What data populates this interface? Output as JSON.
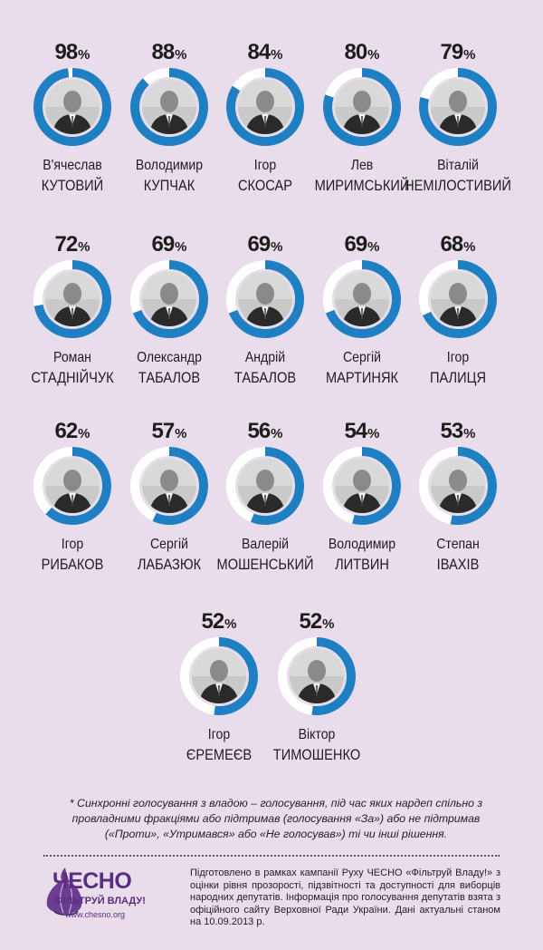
{
  "deputies": [
    {
      "pct": "98",
      "first": "В'ячеслав",
      "last": "КУТОВИЙ",
      "value": 0.98
    },
    {
      "pct": "88",
      "first": "Володимир",
      "last": "КУПЧАК",
      "value": 0.88
    },
    {
      "pct": "84",
      "first": "Ігор",
      "last": "СКОСАР",
      "value": 0.84
    },
    {
      "pct": "80",
      "first": "Лев",
      "last": "МИРИМСЬКИЙ",
      "value": 0.8
    },
    {
      "pct": "79",
      "first": "Віталій",
      "last": "НЕМІЛОСТИВИЙ",
      "value": 0.79
    },
    {
      "pct": "72",
      "first": "Роман",
      "last": "СТАДНІЙЧУК",
      "value": 0.72
    },
    {
      "pct": "69",
      "first": "Олександр",
      "last": "ТАБАЛОВ",
      "value": 0.69
    },
    {
      "pct": "69",
      "first": "Андрій",
      "last": "ТАБАЛОВ",
      "value": 0.69
    },
    {
      "pct": "69",
      "first": "Сергій",
      "last": "МАРТИНЯК",
      "value": 0.69
    },
    {
      "pct": "68",
      "first": "Ігор",
      "last": "ПАЛИЦЯ",
      "value": 0.68
    },
    {
      "pct": "62",
      "first": "Ігор",
      "last": "РИБАКОВ",
      "value": 0.62
    },
    {
      "pct": "57",
      "first": "Сергій",
      "last": "ЛАБАЗЮК",
      "value": 0.57
    },
    {
      "pct": "56",
      "first": "Валерій",
      "last": "МОШЕНСЬКИЙ",
      "value": 0.56
    },
    {
      "pct": "54",
      "first": "Володимир",
      "last": "ЛИТВИН",
      "value": 0.54
    },
    {
      "pct": "53",
      "first": "Степан",
      "last": "ІВАХІВ",
      "value": 0.53
    },
    {
      "pct": "52",
      "first": "Ігор",
      "last": "ЄРЕМЕЄВ",
      "value": 0.52
    },
    {
      "pct": "52",
      "first": "Віктор",
      "last": "ТИМОШЕНКО",
      "value": 0.52
    }
  ],
  "percent_sign": "%",
  "footnote": "* Синхронні голосування з владою – голосування, під час яких нардеп спільно з провладними фракціями або підтримав (голосування «За») або не підтримав («Проти», «Утримався» або «Не голосував») ті чи інші рішення.",
  "logo": {
    "brand": "ЧЕСНО",
    "tagline": "ФІЛЬТРУЙ ВЛАДУ!",
    "site": "www.chesno.org"
  },
  "about": "Підготовлено в рамках кампанії Руху ЧЕСНО «Фільтруй Владу!» з оцінки рівня прозорості, підзвітності та доступності для виборців народних депутатів. Інформація про голосування депутатів взята з офіційного сайту Верховної Ради України. Дані актуальні станом на 10.09.2013 р.",
  "colors": {
    "background": "#e9ddec",
    "ring": "#1f7fc3",
    "ring_track": "#ffffff",
    "brand": "#5a2d81"
  }
}
